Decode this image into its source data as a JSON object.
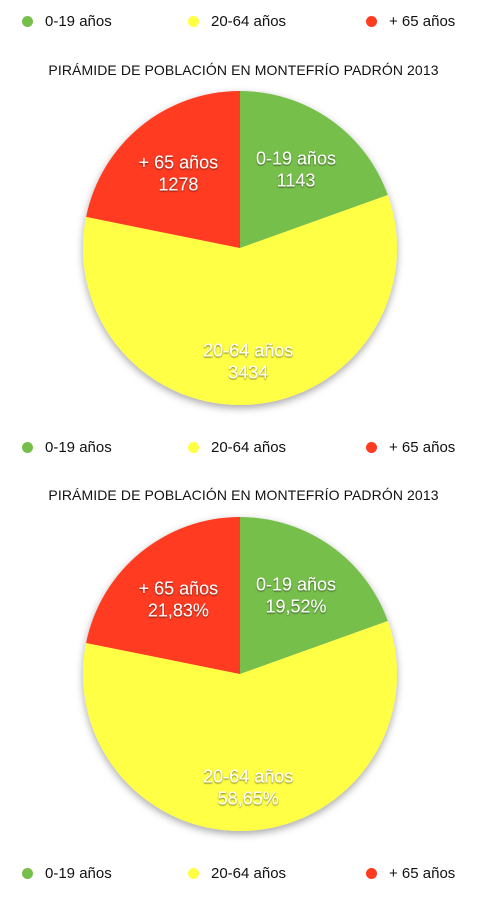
{
  "colors": {
    "young": "#76bf4b",
    "adult": "#ffff44",
    "senior": "#ff3b21"
  },
  "legend": [
    {
      "label": "0-19 años"
    },
    {
      "label": "20-64 años"
    },
    {
      "label": "+ 65 años"
    }
  ],
  "chart_data": [
    {
      "type": "pie",
      "title": "PIRÁMIDE DE POBLACIÓN EN MONTEFRÍO PADRÓN 2013",
      "legend_position": "bottom",
      "series": [
        {
          "name": "0-19 años",
          "value": 1143,
          "label": "1143"
        },
        {
          "name": "20-64 años",
          "value": 3434,
          "label": "3434"
        },
        {
          "name": "+ 65 años",
          "value": 1278,
          "label": "1278"
        }
      ]
    },
    {
      "type": "pie",
      "title": "PIRÁMIDE DE POBLACIÓN EN MONTEFRÍO PADRÓN 2013",
      "legend_position": "bottom",
      "series": [
        {
          "name": "0-19 años",
          "value": 19.52,
          "label": "19,52%"
        },
        {
          "name": "20-64 años",
          "value": 58.65,
          "label": "58,65%"
        },
        {
          "name": "+ 65 años",
          "value": 21.83,
          "label": "21,83%"
        }
      ]
    }
  ]
}
